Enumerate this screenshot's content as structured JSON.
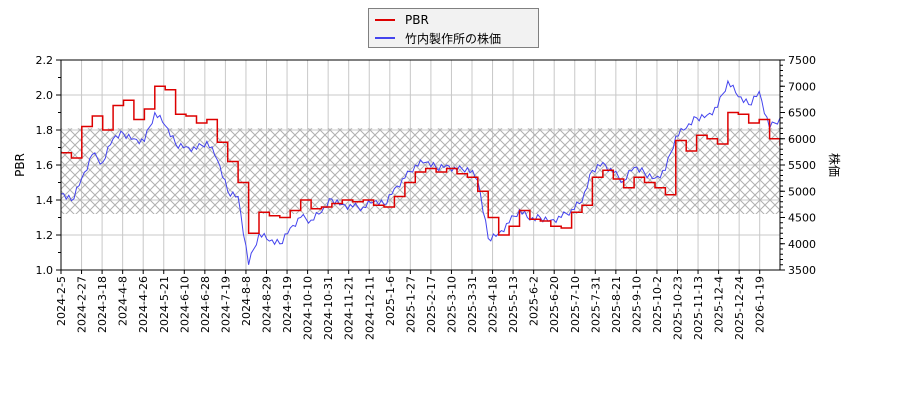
{
  "legend": {
    "items": [
      {
        "label": "PBR",
        "color": "#dd0000"
      },
      {
        "label": "竹内製作所の株価",
        "color": "#4444ee"
      }
    ]
  },
  "axes": {
    "left_title": "PBR",
    "right_title": "株価"
  },
  "chart_data": {
    "type": "line",
    "title": "",
    "xlabel": "",
    "ylabel": "PBR",
    "y2label": "株価",
    "ylim": [
      1.0,
      2.2
    ],
    "y2lim": [
      3500,
      7500
    ],
    "yticks": [
      "1.0",
      "1.2",
      "1.4",
      "1.6",
      "1.8",
      "2.0",
      "2.2"
    ],
    "y2ticks": [
      "3500",
      "4000",
      "4500",
      "5000",
      "5500",
      "6000",
      "6500",
      "7000",
      "7500"
    ],
    "grid": true,
    "legend_position": "top-center",
    "shaded_band": {
      "from": 1.32,
      "to": 1.81,
      "style": "crosshatch"
    },
    "xticks": [
      "2024-2-5",
      "2024-2-27",
      "2024-3-18",
      "2024-4-8",
      "2024-4-26",
      "2024-5-21",
      "2024-6-10",
      "2024-6-28",
      "2024-7-19",
      "2024-8-8",
      "2024-8-29",
      "2024-9-19",
      "2024-10-10",
      "2024-10-31",
      "2024-11-21",
      "2024-12-11",
      "2025-1-6",
      "2025-1-27",
      "2025-2-17",
      "2025-3-10",
      "2025-3-31",
      "2025-4-18",
      "2025-5-13",
      "2025-6-2",
      "2025-6-20",
      "2025-7-10",
      "2025-7-31",
      "2025-8-21",
      "2025-9-10",
      "2025-10-2",
      "2025-10-23",
      "2025-11-13",
      "2025-12-4",
      "2025-12-24",
      "2026-1-19"
    ],
    "x": [
      "2024-2-5",
      "2024-2-15",
      "2024-2-27",
      "2024-3-8",
      "2024-3-18",
      "2024-3-28",
      "2024-4-8",
      "2024-4-17",
      "2024-4-26",
      "2024-5-9",
      "2024-5-21",
      "2024-5-31",
      "2024-6-10",
      "2024-6-19",
      "2024-6-28",
      "2024-7-9",
      "2024-7-19",
      "2024-7-29",
      "2024-8-8",
      "2024-8-19",
      "2024-8-29",
      "2024-9-9",
      "2024-9-19",
      "2024-9-30",
      "2024-10-10",
      "2024-10-21",
      "2024-10-31",
      "2024-11-11",
      "2024-11-21",
      "2024-12-2",
      "2024-12-11",
      "2024-12-23",
      "2025-1-6",
      "2025-1-16",
      "2025-1-27",
      "2025-2-6",
      "2025-2-17",
      "2025-2-27",
      "2025-3-10",
      "2025-3-19",
      "2025-3-31",
      "2025-4-9",
      "2025-4-18",
      "2025-5-1",
      "2025-5-13",
      "2025-5-22",
      "2025-6-2",
      "2025-6-11",
      "2025-6-20",
      "2025-6-30",
      "2025-7-10",
      "2025-7-22",
      "2025-7-31",
      "2025-8-11",
      "2025-8-21",
      "2025-9-1",
      "2025-9-10",
      "2025-9-22",
      "2025-10-2",
      "2025-10-13",
      "2025-10-23",
      "2025-11-4",
      "2025-11-13",
      "2025-11-25",
      "2025-12-4",
      "2025-12-15",
      "2025-12-24",
      "2026-1-8",
      "2026-1-19",
      "2026-1-28"
    ],
    "series": [
      {
        "name": "PBR",
        "axis": "left",
        "color": "#dd0000",
        "values": [
          1.67,
          1.64,
          1.82,
          1.88,
          1.8,
          1.94,
          1.97,
          1.86,
          1.92,
          2.05,
          2.03,
          1.89,
          1.88,
          1.84,
          1.86,
          1.73,
          1.62,
          1.5,
          1.21,
          1.33,
          1.31,
          1.3,
          1.34,
          1.4,
          1.35,
          1.36,
          1.38,
          1.4,
          1.39,
          1.4,
          1.37,
          1.36,
          1.42,
          1.5,
          1.56,
          1.58,
          1.56,
          1.58,
          1.55,
          1.53,
          1.45,
          1.3,
          1.2,
          1.25,
          1.34,
          1.29,
          1.28,
          1.25,
          1.24,
          1.33,
          1.37,
          1.53,
          1.57,
          1.52,
          1.47,
          1.53,
          1.5,
          1.47,
          1.43,
          1.74,
          1.68,
          1.77,
          1.75,
          1.72,
          1.9,
          1.89,
          1.84,
          1.86,
          1.75,
          1.71
        ]
      },
      {
        "name": "竹内製作所の株価",
        "axis": "right",
        "color": "#4444ee",
        "values": [
          4950,
          4820,
          5250,
          5700,
          5550,
          6000,
          6100,
          6000,
          5950,
          6500,
          6250,
          5900,
          5850,
          5800,
          5950,
          5600,
          5000,
          4900,
          3600,
          4200,
          4050,
          4000,
          4300,
          4500,
          4450,
          4600,
          4850,
          4750,
          4700,
          4700,
          4800,
          4750,
          5050,
          5250,
          5500,
          5550,
          5450,
          5500,
          5400,
          5450,
          5200,
          4100,
          4200,
          4400,
          4650,
          4450,
          4500,
          4450,
          4500,
          4650,
          4800,
          5400,
          5550,
          5350,
          5200,
          5450,
          5350,
          5250,
          5400,
          6050,
          6200,
          6400,
          6450,
          6600,
          7100,
          6800,
          6650,
          6900,
          6200,
          6400
        ]
      }
    ]
  }
}
